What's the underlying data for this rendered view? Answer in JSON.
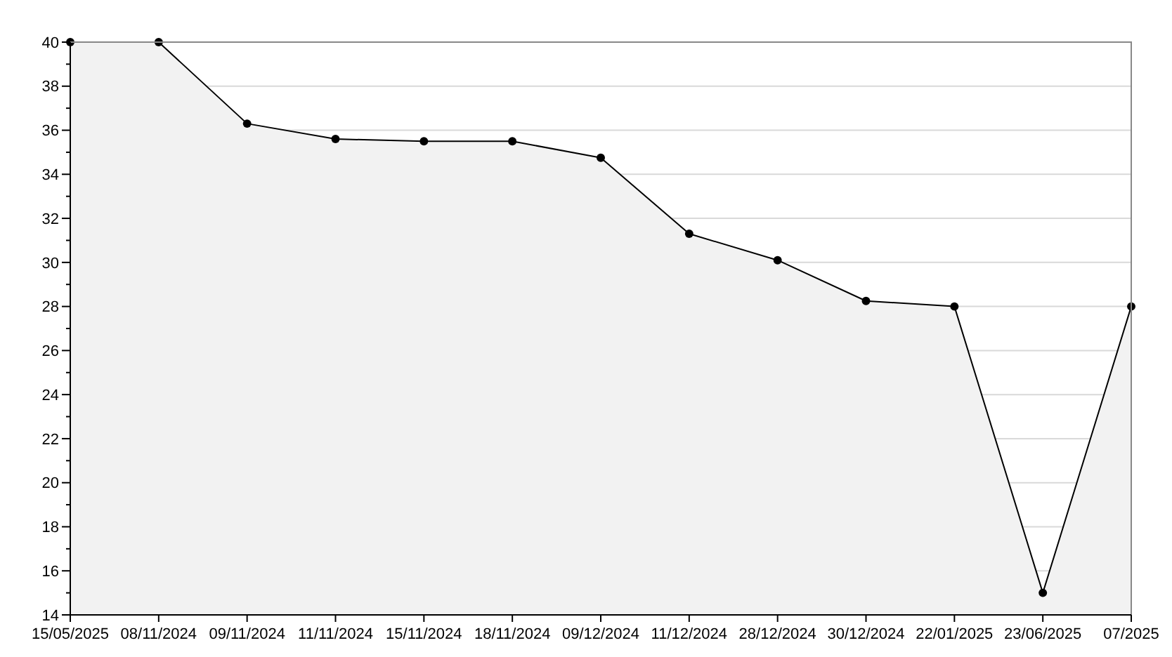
{
  "chart_data": {
    "type": "area",
    "categories": [
      "15/05/2025",
      "08/11/2024",
      "09/11/2024",
      "11/11/2024",
      "15/11/2024",
      "18/11/2024",
      "09/12/2024",
      "11/12/2024",
      "28/12/2024",
      "30/12/2024",
      "22/01/2025",
      "23/06/2025",
      "07/2025"
    ],
    "series": [
      {
        "color": "#000000",
        "values": [
          40,
          40,
          36.3,
          35.6,
          35.5,
          35.5,
          34.75,
          31.3,
          30.1,
          28.25,
          28,
          15,
          28
        ]
      }
    ],
    "ylim": [
      14,
      40
    ],
    "yticks": [
      14,
      16,
      18,
      20,
      22,
      24,
      26,
      28,
      30,
      32,
      34,
      36,
      38,
      40
    ],
    "grid": "y",
    "marker": "circle",
    "line_style": "solid"
  }
}
